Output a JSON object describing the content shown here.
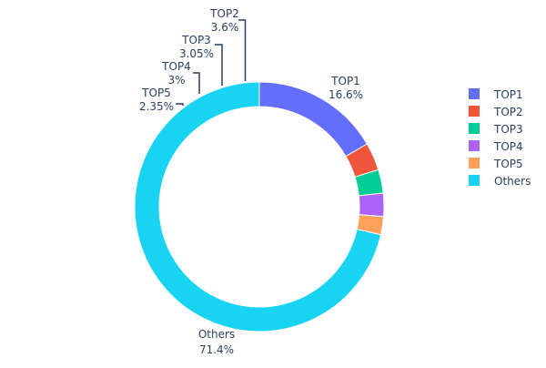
{
  "chart_data": {
    "type": "pie",
    "hole": true,
    "legend_position": "right",
    "slices": [
      {
        "label": "TOP1",
        "value": 16.6,
        "text": "16.6%",
        "color": "#636efa"
      },
      {
        "label": "TOP2",
        "value": 3.6,
        "text": "3.6%",
        "color": "#ef553b"
      },
      {
        "label": "TOP3",
        "value": 3.05,
        "text": "3.05%",
        "color": "#00cc96"
      },
      {
        "label": "TOP4",
        "value": 3.0,
        "text": "3%",
        "color": "#ab63fa"
      },
      {
        "label": "TOP5",
        "value": 2.35,
        "text": "2.35%",
        "color": "#ffa15a"
      },
      {
        "label": "Others",
        "value": 71.4,
        "text": "71.4%",
        "color": "#19d3f3"
      }
    ]
  }
}
